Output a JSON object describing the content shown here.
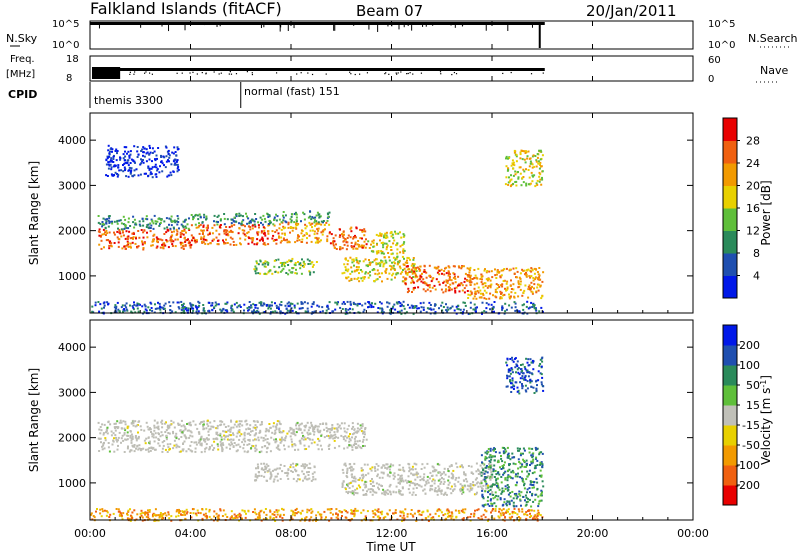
{
  "header": {
    "station": "Falkland Islands (fitACF)",
    "beam": "Beam 07",
    "date": "20/Jan/2011"
  },
  "noise_panel": {
    "left_label": "N.Sky",
    "right_label": "N.Search",
    "left_ticks": [
      "10^5",
      "10^0"
    ],
    "right_ticks": [
      "10^5",
      "10^0"
    ]
  },
  "freq_panel": {
    "left_label_line1": "Freq.",
    "left_label_line2": "[MHz]",
    "left_ticks": [
      "18",
      "8"
    ],
    "right_label": "Nave",
    "right_ticks": [
      "60",
      "0"
    ]
  },
  "cpid": {
    "label": "CPID",
    "modes": [
      {
        "name": "themis 3300",
        "start_hour": 0
      },
      {
        "name": "normal (fast) 151",
        "start_hour": 6.0
      }
    ]
  },
  "time_axis": {
    "title": "Time UT",
    "ticks": [
      "00:00",
      "04:00",
      "08:00",
      "12:00",
      "16:00",
      "20:00",
      "00:00"
    ],
    "tick_hours": [
      0,
      4,
      8,
      12,
      16,
      20,
      24
    ]
  },
  "colors": {
    "power_scale": [
      "#0018e8",
      "#1f4fb0",
      "#2a8a5a",
      "#5fbf3a",
      "#e8d000",
      "#f29a00",
      "#f06010",
      "#e80000"
    ],
    "velocity_scale": [
      "#e80000",
      "#f06010",
      "#f29a00",
      "#e8d000",
      "#c0c0b8",
      "#5fbf3a",
      "#2a8a5a",
      "#1f4fb0",
      "#0018e8"
    ],
    "ground_scatter": "#bdbdb5"
  },
  "chart_data": [
    {
      "type": "heatmap",
      "panel": "power",
      "title": "",
      "xlabel": "",
      "ylabel": "Slant Range [km]",
      "y_ticks": [
        "1000",
        "2000",
        "3000",
        "4000"
      ],
      "y_tick_values": [
        1000,
        2000,
        3000,
        4000
      ],
      "ylim": [
        180,
        4600
      ],
      "xlim_hours": [
        0,
        24
      ],
      "colorbar_label": "Power [dB]",
      "colorbar_ticks": [
        "4",
        "8",
        "12",
        "16",
        "20",
        "24",
        "28"
      ],
      "colorbar_range": [
        0,
        30
      ],
      "echo_bands": [
        {
          "t0": 0.3,
          "t1": 4.0,
          "r0": 1600,
          "r1": 2050,
          "level": 6
        },
        {
          "t0": 0.3,
          "t1": 4.0,
          "r0": 2050,
          "r1": 2350,
          "level": 2
        },
        {
          "t0": 4.0,
          "t1": 7.5,
          "r0": 1700,
          "r1": 2150,
          "level": 6
        },
        {
          "t0": 4.0,
          "t1": 7.5,
          "r0": 2150,
          "r1": 2400,
          "level": 2
        },
        {
          "t0": 7.5,
          "t1": 9.5,
          "r0": 1750,
          "r1": 2200,
          "level": 5
        },
        {
          "t0": 7.5,
          "t1": 9.5,
          "r0": 2200,
          "r1": 2450,
          "level": 2
        },
        {
          "t0": 9.5,
          "t1": 11.0,
          "r0": 1600,
          "r1": 2100,
          "level": 6
        },
        {
          "t0": 11.0,
          "t1": 12.5,
          "r0": 1500,
          "r1": 2000,
          "level": 4
        },
        {
          "t0": 6.5,
          "t1": 9.0,
          "r0": 1050,
          "r1": 1400,
          "level": 3
        },
        {
          "t0": 10.0,
          "t1": 13.0,
          "r0": 900,
          "r1": 1450,
          "level": 4
        },
        {
          "t0": 12.5,
          "t1": 15.0,
          "r0": 650,
          "r1": 1250,
          "level": 6
        },
        {
          "t0": 15.0,
          "t1": 18.0,
          "r0": 500,
          "r1": 1200,
          "level": 5
        },
        {
          "t0": 0.6,
          "t1": 3.5,
          "r0": 3200,
          "r1": 3900,
          "level": 0
        },
        {
          "t0": 16.5,
          "t1": 18.0,
          "r0": 3000,
          "r1": 3800,
          "level": 4
        },
        {
          "t0": 0.0,
          "t1": 18.0,
          "r0": 180,
          "r1": 450,
          "level": 1
        }
      ]
    },
    {
      "type": "heatmap",
      "panel": "velocity",
      "title": "",
      "xlabel": "Time UT",
      "ylabel": "Slant Range [km]",
      "y_ticks": [
        "1000",
        "2000",
        "3000",
        "4000"
      ],
      "y_tick_values": [
        1000,
        2000,
        3000,
        4000
      ],
      "ylim": [
        180,
        4600
      ],
      "xlim_hours": [
        0,
        24
      ],
      "colorbar_label": "Velocity [m s^-1]",
      "colorbar_ticks": [
        "200",
        "100",
        "50",
        "15",
        "-15",
        "-50",
        "-100",
        "-200"
      ],
      "colorbar_range": [
        -250,
        250
      ],
      "echo_bands": [
        {
          "t0": 0.3,
          "t1": 7.5,
          "r0": 1700,
          "r1": 2400,
          "level": 4
        },
        {
          "t0": 7.5,
          "t1": 11.0,
          "r0": 1750,
          "r1": 2350,
          "level": 4
        },
        {
          "t0": 6.5,
          "t1": 9.0,
          "r0": 1050,
          "r1": 1450,
          "level": 4
        },
        {
          "t0": 10.0,
          "t1": 16.0,
          "r0": 750,
          "r1": 1450,
          "level": 4
        },
        {
          "t0": 15.5,
          "t1": 18.0,
          "r0": 500,
          "r1": 1800,
          "level": 6
        },
        {
          "t0": 16.5,
          "t1": 18.0,
          "r0": 3000,
          "r1": 3800,
          "level": 7
        },
        {
          "t0": 0.0,
          "t1": 18.0,
          "r0": 180,
          "r1": 450,
          "level": 2
        }
      ]
    }
  ]
}
